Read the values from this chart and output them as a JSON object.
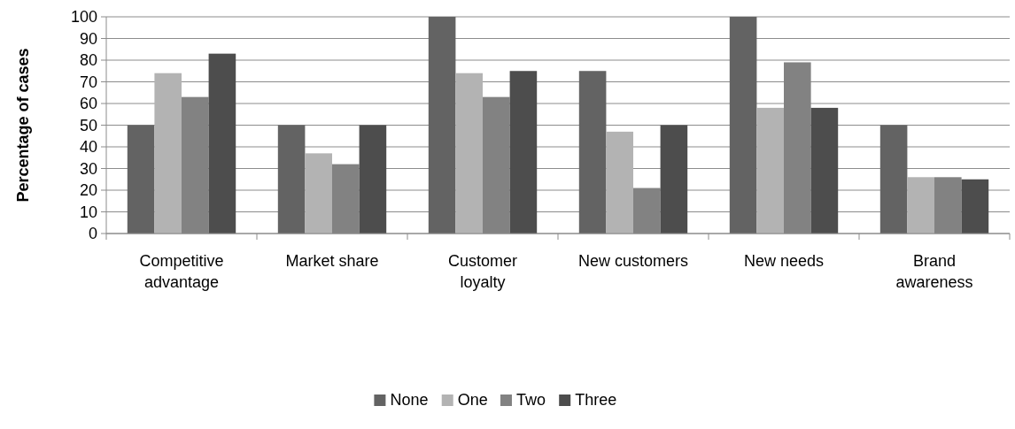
{
  "chart_data": {
    "type": "bar",
    "ylabel": "Percentage of cases",
    "categories": [
      "Competitive advantage",
      "Market share",
      "Customer loyalty",
      "New customers",
      "New needs",
      "Brand awareness"
    ],
    "series": [
      {
        "name": "None",
        "color": "#636363",
        "values": [
          50,
          50,
          100,
          75,
          100,
          50
        ]
      },
      {
        "name": "One",
        "color": "#b3b3b3",
        "values": [
          74,
          37,
          74,
          47,
          58,
          26
        ]
      },
      {
        "name": "Two",
        "color": "#828282",
        "values": [
          63,
          32,
          63,
          21,
          79,
          26
        ]
      },
      {
        "name": "Three",
        "color": "#4d4d4d",
        "values": [
          83,
          50,
          75,
          50,
          58,
          25
        ]
      }
    ],
    "ylim": [
      0,
      100
    ],
    "yticks": [
      0,
      10,
      20,
      30,
      40,
      50,
      60,
      70,
      80,
      90,
      100
    ],
    "grid": "y",
    "legend": "bottom"
  }
}
